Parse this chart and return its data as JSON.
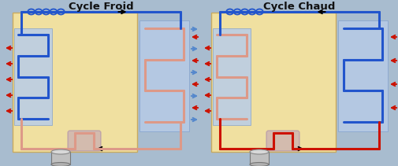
{
  "title_left": "Cycle Froid",
  "title_right": "Cycle Chaud",
  "bg_outer": "#a8bccf",
  "bg_panel": "#f0e0a0",
  "bg_exchanger": "#b8cce8",
  "blue": "#2255cc",
  "red": "#cc1100",
  "pink": "#dd9988",
  "light_blue": "#5588cc",
  "purple": "#b090c0",
  "gray": "#aaaaaa",
  "title_fontsize": 9.5,
  "fig_width": 5.05,
  "fig_height": 2.11,
  "dpi": 100
}
